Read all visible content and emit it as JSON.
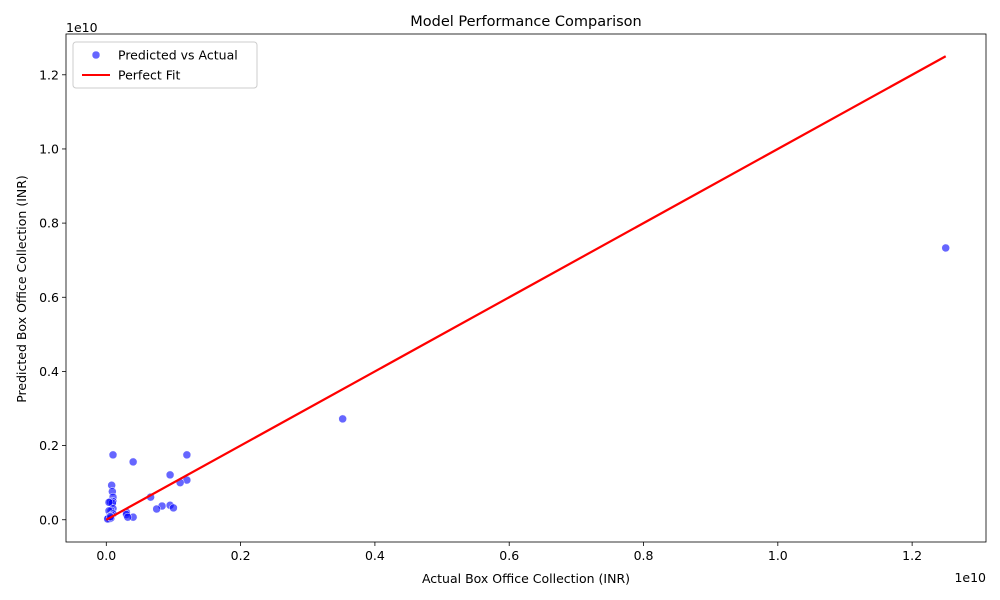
{
  "chart_data": {
    "type": "scatter",
    "title": "Model Performance Comparison",
    "xlabel": "Actual Box Office Collection (INR)",
    "ylabel": "Predicted Box Office Collection (INR)",
    "x_offset_label": "1e10",
    "y_offset_label": "1e10",
    "xlim": [
      -0.06,
      1.31
    ],
    "ylim": [
      -0.06,
      1.31
    ],
    "x_ticks": [
      0.0,
      0.2,
      0.4,
      0.6,
      0.8,
      1.0,
      1.2
    ],
    "x_tick_labels": [
      "0.0",
      "0.2",
      "0.4",
      "0.6",
      "0.8",
      "1.0",
      "1.2"
    ],
    "y_ticks": [
      0.0,
      0.2,
      0.4,
      0.6,
      0.8,
      1.0,
      1.2
    ],
    "y_tick_labels": [
      "0.0",
      "0.2",
      "0.4",
      "0.6",
      "0.8",
      "1.0",
      "1.2"
    ],
    "grid": false,
    "legend_position": "top-left",
    "series": [
      {
        "name": "Predicted vs Actual",
        "kind": "scatter",
        "color": "#0000ff",
        "opacity": 0.6,
        "points": [
          [
            1.25,
            0.733
          ],
          [
            0.352,
            0.272
          ],
          [
            0.12,
            0.175
          ],
          [
            0.12,
            0.107
          ],
          [
            0.11,
            0.1
          ],
          [
            0.095,
            0.121
          ],
          [
            0.095,
            0.039
          ],
          [
            0.1,
            0.032
          ],
          [
            0.083,
            0.037
          ],
          [
            0.075,
            0.029
          ],
          [
            0.066,
            0.061
          ],
          [
            0.04,
            0.156
          ],
          [
            0.04,
            0.007
          ],
          [
            0.03,
            0.02
          ],
          [
            0.03,
            0.014
          ],
          [
            0.032,
            0.007
          ],
          [
            0.01,
            0.175
          ],
          [
            0.008,
            0.093
          ],
          [
            0.009,
            0.076
          ],
          [
            0.01,
            0.061
          ],
          [
            0.01,
            0.049
          ],
          [
            0.006,
            0.048
          ],
          [
            0.009,
            0.045
          ],
          [
            0.004,
            0.047
          ],
          [
            0.01,
            0.03
          ],
          [
            0.007,
            0.024
          ],
          [
            0.004,
            0.024
          ],
          [
            0.01,
            0.016
          ],
          [
            0.008,
            0.012
          ],
          [
            0.006,
            0.01
          ],
          [
            0.004,
            0.007
          ],
          [
            0.003,
            0.004
          ],
          [
            0.005,
            0.003
          ],
          [
            0.002,
            0.002
          ],
          [
            0.007,
            0.005
          ],
          [
            0.006,
            0.008
          ]
        ]
      },
      {
        "name": "Perfect Fit",
        "kind": "line",
        "color": "#ff0000",
        "points": [
          [
            0.0,
            0.0
          ],
          [
            1.25,
            1.25
          ]
        ]
      }
    ]
  }
}
